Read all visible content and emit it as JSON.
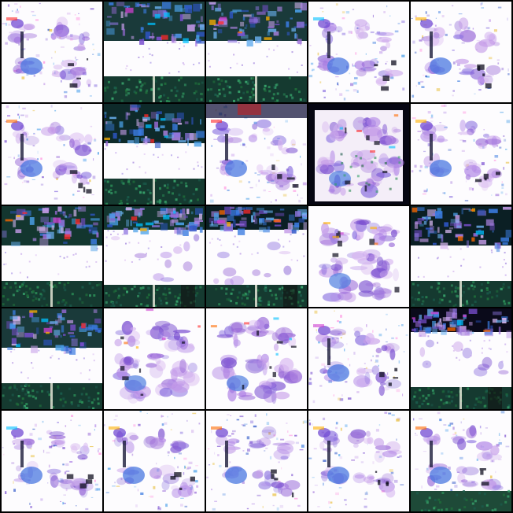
{
  "grid": {
    "rows": 5,
    "cols": 5,
    "background": "#000000",
    "tiles": [
      {
        "variant": "sparse"
      },
      {
        "variant": "band"
      },
      {
        "variant": "band"
      },
      {
        "variant": "sparse"
      },
      {
        "variant": "sparse"
      },
      {
        "variant": "sparse"
      },
      {
        "variant": "band"
      },
      {
        "variant": "sparse-dark"
      },
      {
        "variant": "dense-dark"
      },
      {
        "variant": "sparse"
      },
      {
        "variant": "band"
      },
      {
        "variant": "band-light"
      },
      {
        "variant": "band-light"
      },
      {
        "variant": "dense"
      },
      {
        "variant": "band"
      },
      {
        "variant": "band"
      },
      {
        "variant": "dense"
      },
      {
        "variant": "dense-sparse"
      },
      {
        "variant": "sparse"
      },
      {
        "variant": "band-top"
      },
      {
        "variant": "sparse"
      },
      {
        "variant": "sparse"
      },
      {
        "variant": "sparse"
      },
      {
        "variant": "sparse"
      },
      {
        "variant": "sparse-bottom"
      }
    ]
  }
}
